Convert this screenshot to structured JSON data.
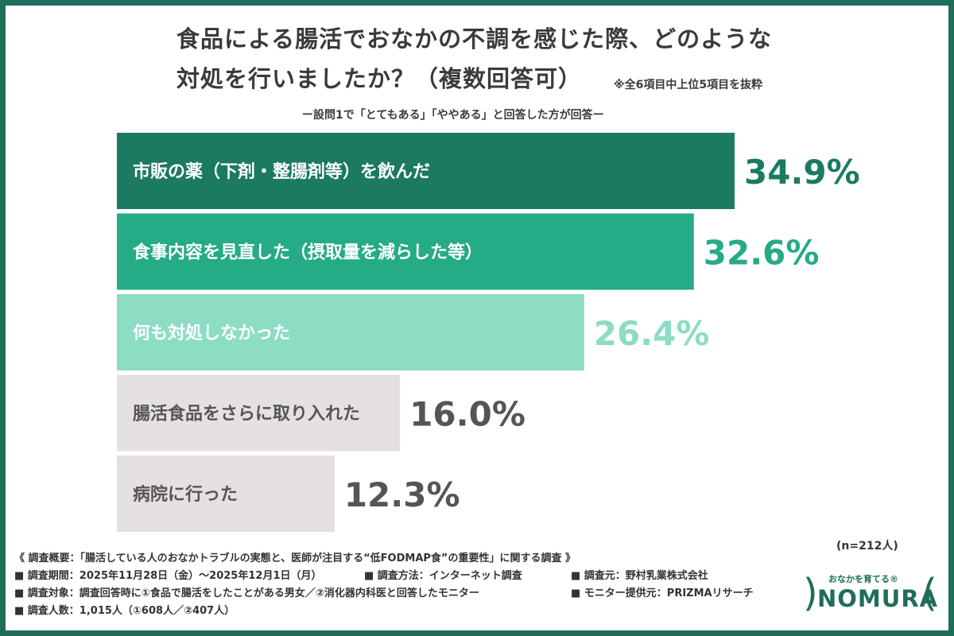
{
  "title_line1": "食品による腸活でおなかの不調を感じた際、どのような",
  "title_line2": "対処を行いましたか？（複数回答可）",
  "note": "※全6項目中上位5項目を抜粋",
  "subtitle": "ー設問1で「とてもある」「ややある」と回答した方が回答ー",
  "sample_size": "(n=212人)",
  "chart_data": {
    "type": "bar",
    "orientation": "horizontal",
    "title": "食品による腸活でおなかの不調を感じた際、どのような対処を行いましたか？（複数回答可）",
    "categories": [
      "市販の薬（下剤・整腸剤等）を飲んだ",
      "食事内容を見直した（摂取量を減らした等）",
      "何も対処しなかった",
      "腸活食品をさらに取り入れた",
      "病院に行った"
    ],
    "values": [
      34.9,
      32.6,
      26.4,
      16.0,
      12.3
    ],
    "value_labels": [
      "34.9%",
      "32.6%",
      "26.4%",
      "16.0%",
      "12.3%"
    ],
    "bar_colors": [
      "#1b7a5f",
      "#25ab86",
      "#8ddcc4",
      "#e4e0e3",
      "#e4e0e3"
    ],
    "label_colors": [
      "#ffffff",
      "#ffffff",
      "#ffffff",
      "#555555",
      "#555555"
    ],
    "value_colors": [
      "#1b7a5f",
      "#25ab86",
      "#8ddcc4",
      "#555555",
      "#555555"
    ],
    "xlim": [
      0,
      34.9
    ],
    "grid": false,
    "legend": "none"
  },
  "footer": {
    "overview": "《 調査概要：「腸活している人のおなかトラブルの実態と、医師が注目する“低FODMAP食”の重要性」に関する調査 》",
    "period": "■ 調査期間：2025年11月28日（金）〜2025年12月1日（月）",
    "method": "■ 調査方法：インターネット調査",
    "sponsor": "■ 調査元：野村乳業株式会社",
    "target": "■ 調査対象：調査回答時に①食品で腸活をしたことがある男女／②消化器内科医と回答したモニター",
    "provider": "■ モニター提供元：PRIZMAリサーチ",
    "count": "■ 調査人数：1,015人（①608人／②407人）"
  },
  "logo": {
    "tagline": "おなかを育てる®",
    "word": "NOMURA",
    "paren_left": ")",
    "paren_right": "("
  }
}
